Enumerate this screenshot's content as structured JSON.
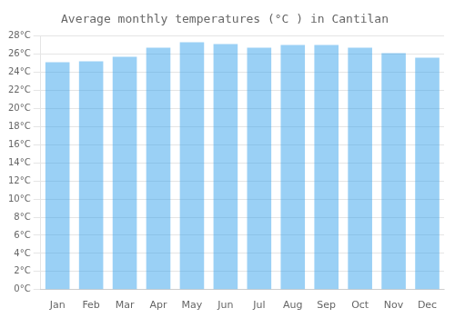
{
  "chart_data": {
    "type": "bar",
    "title": "Average monthly temperatures (°C ) in Cantilan",
    "categories": [
      "Jan",
      "Feb",
      "Mar",
      "Apr",
      "May",
      "Jun",
      "Jul",
      "Aug",
      "Sep",
      "Oct",
      "Nov",
      "Dec"
    ],
    "values": [
      25.1,
      25.2,
      25.7,
      26.7,
      27.3,
      27.1,
      26.7,
      27.0,
      27.0,
      26.7,
      26.1,
      25.6
    ],
    "ylim": [
      0,
      28
    ],
    "yticks": [
      {
        "value": 0,
        "label": "0°C"
      },
      {
        "value": 2,
        "label": "2°C"
      },
      {
        "value": 4,
        "label": "4°C"
      },
      {
        "value": 6,
        "label": "6°C"
      },
      {
        "value": 8,
        "label": "8°C"
      },
      {
        "value": 10,
        "label": "10°C"
      },
      {
        "value": 12,
        "label": "12°C"
      },
      {
        "value": 14,
        "label": "14°C"
      },
      {
        "value": 16,
        "label": "16°C"
      },
      {
        "value": 18,
        "label": "18°C"
      },
      {
        "value": 20,
        "label": "20°C"
      },
      {
        "value": 22,
        "label": "22°C"
      },
      {
        "value": 24,
        "label": "24°C"
      },
      {
        "value": 26,
        "label": "26°C"
      },
      {
        "value": 28,
        "label": "28°C"
      }
    ],
    "grid": true
  }
}
